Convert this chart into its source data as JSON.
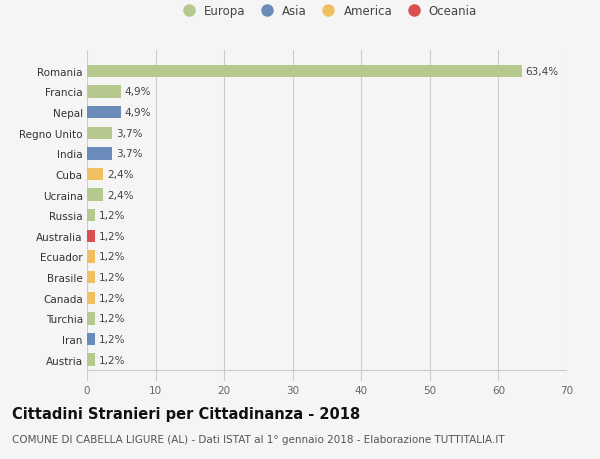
{
  "categories": [
    "Romania",
    "Francia",
    "Nepal",
    "Regno Unito",
    "India",
    "Cuba",
    "Ucraina",
    "Russia",
    "Australia",
    "Ecuador",
    "Brasile",
    "Canada",
    "Turchia",
    "Iran",
    "Austria"
  ],
  "values": [
    63.4,
    4.9,
    4.9,
    3.7,
    3.7,
    2.4,
    2.4,
    1.2,
    1.2,
    1.2,
    1.2,
    1.2,
    1.2,
    1.2,
    1.2
  ],
  "labels": [
    "63,4%",
    "4,9%",
    "4,9%",
    "3,7%",
    "3,7%",
    "2,4%",
    "2,4%",
    "1,2%",
    "1,2%",
    "1,2%",
    "1,2%",
    "1,2%",
    "1,2%",
    "1,2%",
    "1,2%"
  ],
  "colors": [
    "#b5c98e",
    "#b5c98e",
    "#6b8cba",
    "#b5c98e",
    "#6b8cba",
    "#f0c060",
    "#b5c98e",
    "#b5c98e",
    "#d94f4f",
    "#f0c060",
    "#f0c060",
    "#f0c060",
    "#b5c98e",
    "#6b8cba",
    "#b5c98e"
  ],
  "legend_labels": [
    "Europa",
    "Asia",
    "America",
    "Oceania"
  ],
  "legend_colors": [
    "#b5c98e",
    "#6b8cba",
    "#f0c060",
    "#d94f4f"
  ],
  "xlim": [
    0,
    70
  ],
  "xticks": [
    0,
    10,
    20,
    30,
    40,
    50,
    60,
    70
  ],
  "title": "Cittadini Stranieri per Cittadinanza - 2018",
  "subtitle": "COMUNE DI CABELLA LIGURE (AL) - Dati ISTAT al 1° gennaio 2018 - Elaborazione TUTTITALIA.IT",
  "background_color": "#f5f5f5",
  "plot_bg_color": "#ffffff",
  "grid_color": "#dddddd",
  "bar_height": 0.6,
  "title_fontsize": 10.5,
  "subtitle_fontsize": 7.5,
  "label_fontsize": 7.5,
  "tick_fontsize": 7.5,
  "legend_fontsize": 8.5
}
